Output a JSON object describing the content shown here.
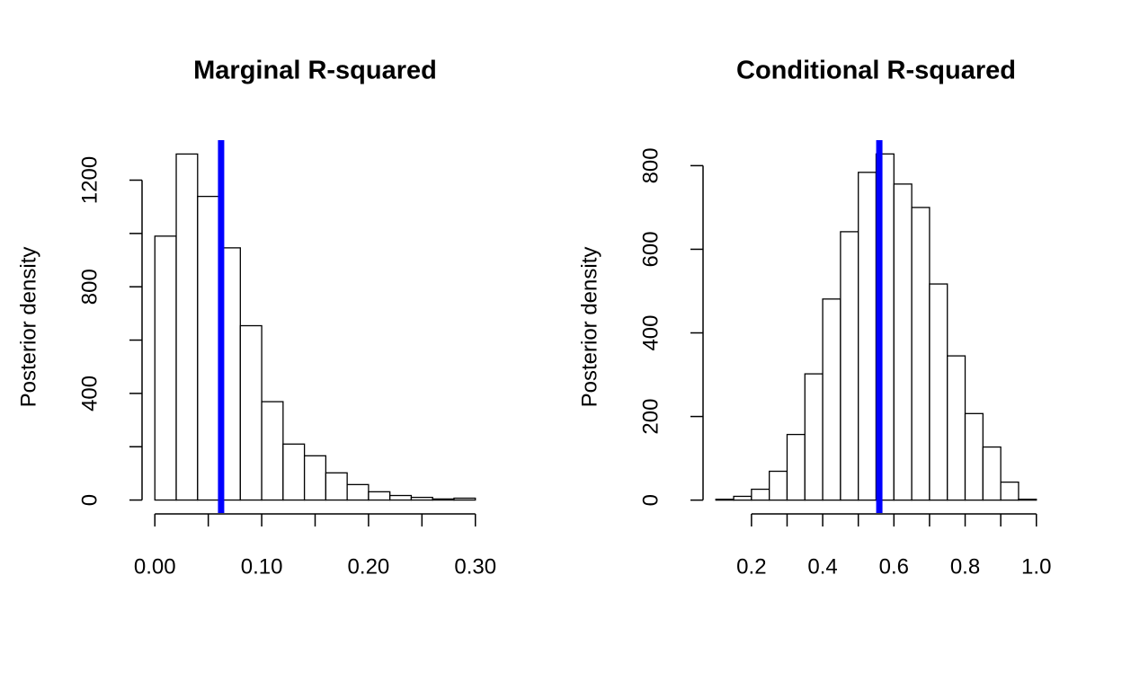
{
  "chart_data": [
    {
      "type": "histogram",
      "title": "Marginal R-squared",
      "ylabel": "Posterior density",
      "bins": [
        0,
        0.02,
        0.04,
        0.06,
        0.08,
        0.1,
        0.12,
        0.14,
        0.16,
        0.18,
        0.2,
        0.22,
        0.24,
        0.26,
        0.28,
        0.3
      ],
      "values": [
        990,
        1298,
        1139,
        946,
        654,
        369,
        210,
        166,
        102,
        58,
        31,
        17,
        10,
        4,
        7
      ],
      "color": "#ffffff",
      "edgecolor": "#000000",
      "vline": 0.062,
      "vline_color": "#0000ff",
      "xlim": [
        -0.012,
        0.312
      ],
      "ylim": [
        -52,
        1350
      ],
      "xticks": [
        {
          "value": 0,
          "label": "0.00"
        },
        {
          "value": 0.1,
          "label": "0.10"
        },
        {
          "value": 0.2,
          "label": "0.20"
        },
        {
          "value": 0.3,
          "label": "0.30"
        }
      ],
      "xminor_ticks": [
        0.05,
        0.15,
        0.25
      ],
      "yticks": [
        0,
        400,
        800,
        1200
      ],
      "yminor_ticks": [
        200,
        600,
        1000
      ]
    },
    {
      "type": "histogram",
      "title": "Conditional R-squared",
      "ylabel": "Posterior density",
      "bins": [
        0.1,
        0.15,
        0.2,
        0.25,
        0.3,
        0.35,
        0.4,
        0.45,
        0.5,
        0.55,
        0.6,
        0.65,
        0.7,
        0.75,
        0.8,
        0.85,
        0.9,
        0.95,
        1.0
      ],
      "values": [
        2,
        9,
        26,
        69,
        157,
        302,
        481,
        642,
        784,
        828,
        756,
        700,
        517,
        345,
        207,
        127,
        43,
        2
      ],
      "color": "#ffffff",
      "edgecolor": "#000000",
      "vline": 0.559,
      "vline_color": "#0000ff",
      "xlim": [
        0.064,
        1.036
      ],
      "ylim": [
        -33,
        861
      ],
      "xticks": [
        0.2,
        0.4,
        0.6,
        0.8,
        {
          "value": 1.0,
          "label": "1.0"
        }
      ],
      "xminor_ticks": [
        0.3,
        0.5,
        0.7,
        0.9
      ],
      "yticks": [
        0,
        200,
        400,
        600,
        800
      ],
      "yminor_ticks": []
    }
  ]
}
